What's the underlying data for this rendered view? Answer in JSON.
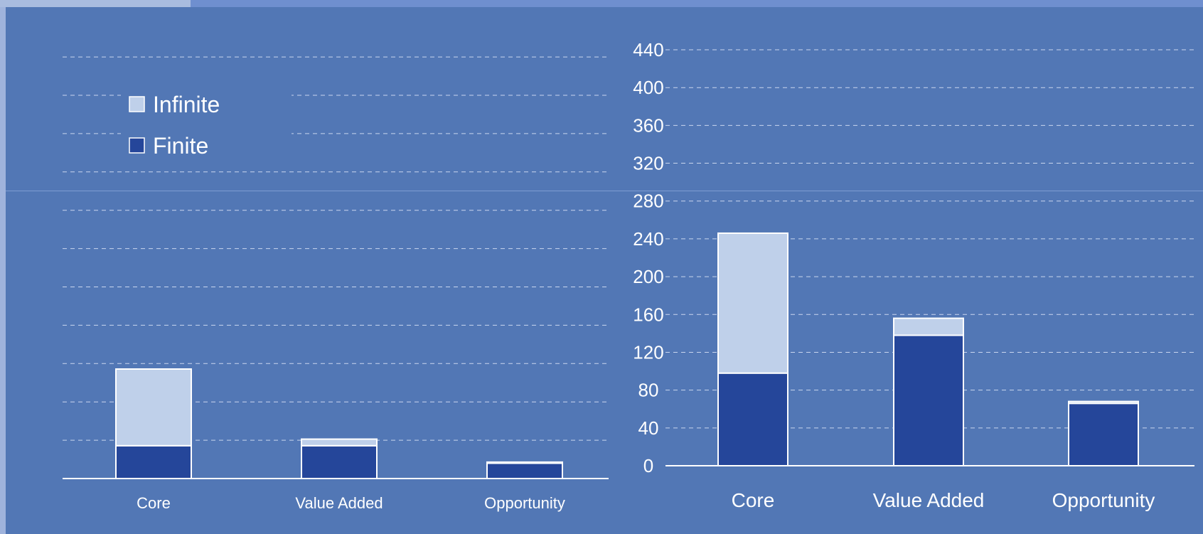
{
  "colors": {
    "background": "#5277b5",
    "infinite": "#bfd0ea",
    "finite": "#25469a",
    "grid": "#c9d6ee",
    "axis": "#ffffff"
  },
  "legend": {
    "items": [
      {
        "label": "Infinite",
        "color": "#bfd0ea"
      },
      {
        "label": "Finite",
        "color": "#25469a"
      }
    ],
    "placement": "top-left"
  },
  "chart_data": [
    {
      "type": "bar",
      "stacked": true,
      "categories": [
        "Core",
        "Value Added",
        "Opportunity"
      ],
      "series": [
        {
          "name": "Finite",
          "values": [
            60,
            60,
            28
          ]
        },
        {
          "name": "Infinite",
          "values": [
            140,
            12,
            2
          ]
        }
      ],
      "ylim": [
        0,
        500
      ],
      "yticks_shown": false,
      "grid": true
    },
    {
      "type": "bar",
      "stacked": true,
      "categories": [
        "Core",
        "Value Added",
        "Opportunity"
      ],
      "series": [
        {
          "name": "Finite",
          "values": [
            98,
            138,
            66
          ]
        },
        {
          "name": "Infinite",
          "values": [
            148,
            18,
            2
          ]
        }
      ],
      "yticks": [
        0,
        40,
        80,
        120,
        160,
        200,
        240,
        280,
        320,
        360,
        400,
        440
      ],
      "ylim": [
        0,
        440
      ],
      "grid": true
    }
  ]
}
